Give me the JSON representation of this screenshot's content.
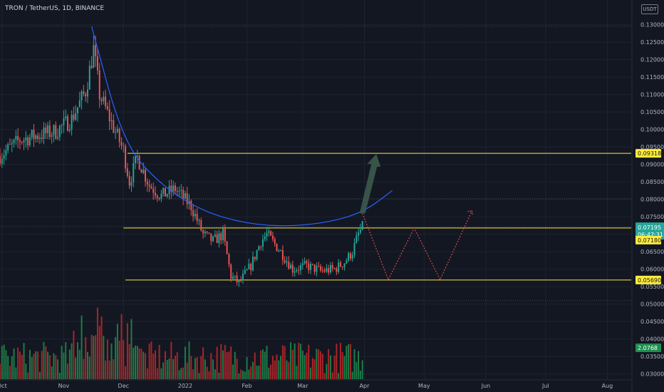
{
  "header": {
    "symbol": "TRON / TetherUS, 1D, BINANCE",
    "currency_unit": "USDT"
  },
  "colors": {
    "background": "#131722",
    "up": "#26a69a",
    "down": "#ef5350",
    "volume_up": "#1e8f4e",
    "volume_down": "#c62828",
    "level_line": "#ffeb3b",
    "curve": "#2962ff",
    "projection": "#ef5350",
    "arrow": "#3d5a4c"
  },
  "chart_data": {
    "type": "candlestick",
    "title": "TRON / TetherUS, 1D, BINANCE",
    "y_axis": {
      "position": "right",
      "scale": "linear",
      "range": [
        0.0285,
        0.133
      ],
      "tick_labels": [
        "0.13000",
        "0.12500",
        "0.12000",
        "0.11500",
        "0.11000",
        "0.10500",
        "0.10000",
        "0.09500",
        "0.09000",
        "0.08500",
        "0.08000",
        "0.07500",
        "0.07000",
        "0.06500",
        "0.06000",
        "0.05500",
        "0.05000",
        "0.04500",
        "0.04000",
        "0.03500",
        "0.03000"
      ],
      "tick_values": [
        0.13,
        0.125,
        0.12,
        0.115,
        0.11,
        0.105,
        0.1,
        0.095,
        0.09,
        0.085,
        0.08,
        0.075,
        0.07,
        0.065,
        0.06,
        0.055,
        0.05,
        0.045,
        0.04,
        0.035,
        0.03
      ]
    },
    "x_axis": {
      "type": "date",
      "range": [
        "2021-09-30",
        "2022-08-13"
      ],
      "tick_labels": [
        "Oct",
        "Nov",
        "Dec",
        "2022",
        "Feb",
        "Mar",
        "Apr",
        "May",
        "Jun",
        "Jul",
        "Aug"
      ],
      "tick_dates": [
        "2021-10-01",
        "2021-11-01",
        "2021-12-01",
        "2022-01-01",
        "2022-02-01",
        "2022-03-01",
        "2022-04-01",
        "2022-05-01",
        "2022-06-01",
        "2022-07-01",
        "2022-08-01"
      ]
    },
    "grid": true,
    "horizontal_levels": [
      {
        "price": 0.09318,
        "label": "0.09318",
        "from_date": "2021-12-03"
      },
      {
        "price": 0.0718,
        "label": "0.07180",
        "from_date": "2021-12-01"
      },
      {
        "price": 0.0569,
        "label": "0.05690",
        "from_date": "2021-12-02"
      }
    ],
    "dotted_levels": [
      0.1295,
      0.0802,
      0.0722,
      0.051
    ],
    "price_labels": [
      {
        "price": 0.07195,
        "label": "0.07195",
        "countdown": "06:47:31",
        "kind": "last_price"
      },
      {
        "price": 0.0718,
        "label": "0.07180",
        "kind": "level"
      },
      {
        "price": 0.09318,
        "label": "0.09318",
        "kind": "level"
      },
      {
        "price": 0.0569,
        "label": "0.05690",
        "kind": "level"
      }
    ],
    "volume_label": "2.0768",
    "ohlc_key_points": [
      {
        "date": "2021-09-30",
        "price": 0.0925
      },
      {
        "date": "2021-10-10",
        "price": 0.097
      },
      {
        "date": "2021-10-20",
        "price": 0.0985
      },
      {
        "date": "2021-10-28",
        "price": 0.0995
      },
      {
        "date": "2021-11-05",
        "price": 0.103
      },
      {
        "date": "2021-11-12",
        "price": 0.111
      },
      {
        "date": "2021-11-16",
        "price": 0.123
      },
      {
        "date": "2021-11-19",
        "price": 0.11
      },
      {
        "date": "2021-11-25",
        "price": 0.102
      },
      {
        "date": "2021-12-01",
        "price": 0.094
      },
      {
        "date": "2021-12-04",
        "price": 0.085
      },
      {
        "date": "2021-12-08",
        "price": 0.092
      },
      {
        "date": "2021-12-14",
        "price": 0.084
      },
      {
        "date": "2021-12-20",
        "price": 0.081
      },
      {
        "date": "2021-12-27",
        "price": 0.083
      },
      {
        "date": "2022-01-04",
        "price": 0.078
      },
      {
        "date": "2022-01-10",
        "price": 0.07
      },
      {
        "date": "2022-01-15",
        "price": 0.068
      },
      {
        "date": "2022-01-20",
        "price": 0.07
      },
      {
        "date": "2022-01-24",
        "price": 0.058
      },
      {
        "date": "2022-01-28",
        "price": 0.056
      },
      {
        "date": "2022-02-03",
        "price": 0.061
      },
      {
        "date": "2022-02-08",
        "price": 0.068
      },
      {
        "date": "2022-02-11",
        "price": 0.07
      },
      {
        "date": "2022-02-18",
        "price": 0.065
      },
      {
        "date": "2022-02-24",
        "price": 0.06
      },
      {
        "date": "2022-03-03",
        "price": 0.061
      },
      {
        "date": "2022-03-10",
        "price": 0.0595
      },
      {
        "date": "2022-03-17",
        "price": 0.06
      },
      {
        "date": "2022-03-22",
        "price": 0.062
      },
      {
        "date": "2022-03-26",
        "price": 0.065
      },
      {
        "date": "2022-03-29",
        "price": 0.07
      },
      {
        "date": "2022-03-31",
        "price": 0.072
      }
    ],
    "cup_curve": [
      {
        "date": "2021-11-15",
        "price": 0.1295
      },
      {
        "date": "2021-12-01",
        "price": 0.096
      },
      {
        "date": "2021-12-20",
        "price": 0.084
      },
      {
        "date": "2022-01-10",
        "price": 0.0765
      },
      {
        "date": "2022-02-01",
        "price": 0.073
      },
      {
        "date": "2022-02-22",
        "price": 0.0722
      },
      {
        "date": "2022-03-15",
        "price": 0.0735
      },
      {
        "date": "2022-04-01",
        "price": 0.0765
      },
      {
        "date": "2022-04-15",
        "price": 0.0825
      }
    ],
    "projection_path": [
      {
        "date": "2022-03-31",
        "price": 0.076
      },
      {
        "date": "2022-04-13",
        "price": 0.057
      },
      {
        "date": "2022-04-26",
        "price": 0.0718
      },
      {
        "date": "2022-05-09",
        "price": 0.057
      },
      {
        "date": "2022-05-25",
        "price": 0.0767
      }
    ],
    "breakout_arrow": {
      "from": {
        "date": "2022-03-31",
        "price": 0.076
      },
      "to": {
        "date": "2022-04-07",
        "price": 0.093
      }
    }
  }
}
